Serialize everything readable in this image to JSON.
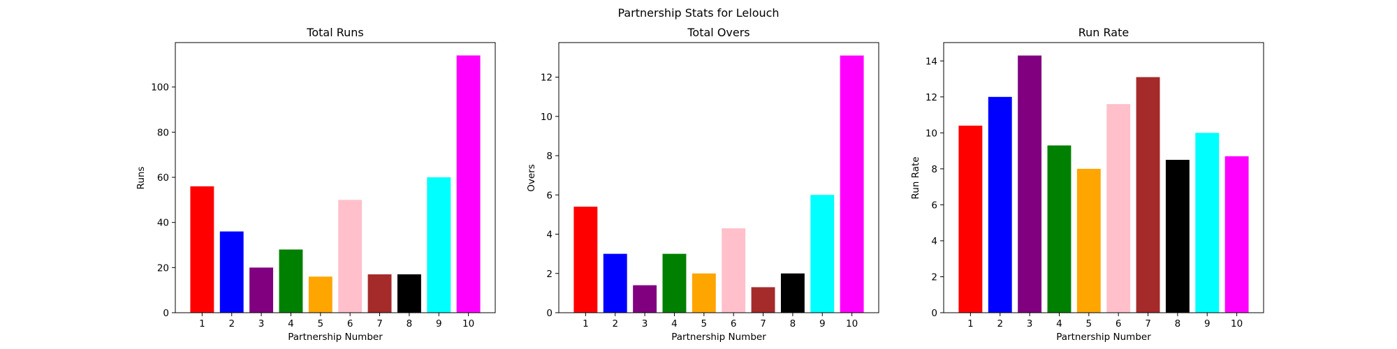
{
  "figure": {
    "title": "Partnership Stats for Lelouch"
  },
  "chart_data": [
    {
      "type": "bar",
      "title": "Total Runs",
      "xlabel": "Partnership Number",
      "ylabel": "Runs",
      "categories": [
        "1",
        "2",
        "3",
        "4",
        "5",
        "6",
        "7",
        "8",
        "9",
        "10"
      ],
      "values": [
        56,
        36,
        20,
        28,
        16,
        50,
        17,
        17,
        60,
        114
      ],
      "colors": [
        "#ff0000",
        "#0000ff",
        "#800080",
        "#008000",
        "#ffa500",
        "#ffc0cb",
        "#a52a2a",
        "#000000",
        "#00ffff",
        "#ff00ff"
      ],
      "ylim": [
        0,
        119.7
      ],
      "yticks": [
        0,
        20,
        40,
        60,
        80,
        100
      ],
      "ytick_labels": [
        "0",
        "20",
        "40",
        "60",
        "80",
        "100"
      ],
      "grid": false
    },
    {
      "type": "bar",
      "title": "Total Overs",
      "xlabel": "Partnership Number",
      "ylabel": "Overs",
      "categories": [
        "1",
        "2",
        "3",
        "4",
        "5",
        "6",
        "7",
        "8",
        "9",
        "10"
      ],
      "values": [
        5.4,
        3.0,
        1.4,
        3.0,
        2.0,
        4.3,
        1.3,
        2.0,
        6.0,
        13.1
      ],
      "colors": [
        "#ff0000",
        "#0000ff",
        "#800080",
        "#008000",
        "#ffa500",
        "#ffc0cb",
        "#a52a2a",
        "#000000",
        "#00ffff",
        "#ff00ff"
      ],
      "ylim": [
        0,
        13.76
      ],
      "yticks": [
        0,
        2,
        4,
        6,
        8,
        10,
        12
      ],
      "ytick_labels": [
        "0",
        "2",
        "4",
        "6",
        "8",
        "10",
        "12"
      ],
      "grid": false
    },
    {
      "type": "bar",
      "title": "Run Rate",
      "xlabel": "Partnership Number",
      "ylabel": "Run Rate",
      "categories": [
        "1",
        "2",
        "3",
        "4",
        "5",
        "6",
        "7",
        "8",
        "9",
        "10"
      ],
      "values": [
        10.4,
        12.0,
        14.3,
        9.3,
        8.0,
        11.6,
        13.1,
        8.5,
        10.0,
        8.7
      ],
      "colors": [
        "#ff0000",
        "#0000ff",
        "#800080",
        "#008000",
        "#ffa500",
        "#ffc0cb",
        "#a52a2a",
        "#000000",
        "#00ffff",
        "#ff00ff"
      ],
      "ylim": [
        0,
        15.02
      ],
      "yticks": [
        0,
        2,
        4,
        6,
        8,
        10,
        12,
        14
      ],
      "ytick_labels": [
        "0",
        "2",
        "4",
        "6",
        "8",
        "10",
        "12",
        "14"
      ],
      "grid": false
    }
  ]
}
